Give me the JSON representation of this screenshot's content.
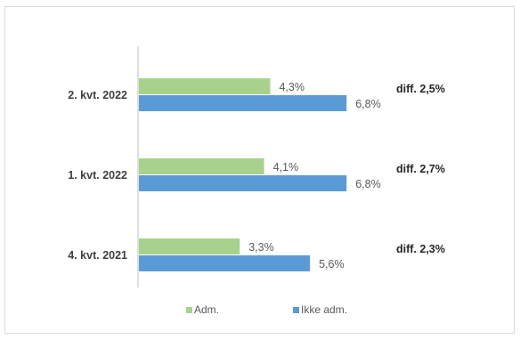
{
  "chart_data": {
    "type": "bar",
    "orientation": "horizontal",
    "categories": [
      "2. kvt. 2022",
      "1. kvt. 2022",
      "4. kvt. 2021"
    ],
    "series": [
      {
        "name": "Adm.",
        "color": "#a9d18e",
        "values": [
          4.3,
          4.1,
          3.3
        ],
        "labels": [
          "4,3%",
          "4,1%",
          "3,3%"
        ]
      },
      {
        "name": "Ikke adm.",
        "color": "#5b9bd5",
        "values": [
          6.8,
          6.8,
          5.6
        ],
        "labels": [
          "6,8%",
          "6,8%",
          "5,6%"
        ]
      }
    ],
    "annotations": [
      "diff. 2,5%",
      "diff. 2,7%",
      "diff. 2,3%"
    ],
    "xlim": [
      0,
      8
    ],
    "grid": false,
    "legend": "bottom"
  }
}
